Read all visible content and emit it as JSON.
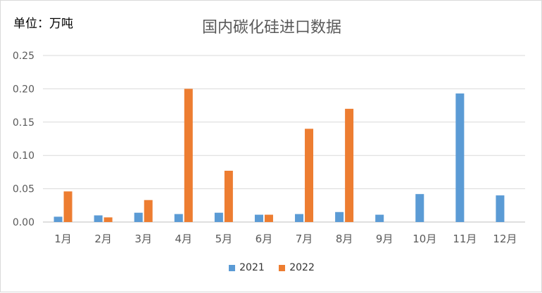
{
  "unit_label": "单位：万吨",
  "colors": {
    "s2021": "#5b9bd5",
    "s2022": "#ed7d31",
    "grid": "#d9d9d9",
    "axis": "#bfbfbf",
    "text": "#595959"
  },
  "chart_data": {
    "type": "bar",
    "title": "国内碳化硅进口数据",
    "categories": [
      "1月",
      "2月",
      "3月",
      "4月",
      "5月",
      "6月",
      "7月",
      "8月",
      "9月",
      "10月",
      "11月",
      "12月"
    ],
    "series": [
      {
        "name": "2021",
        "values": [
          0.008,
          0.01,
          0.014,
          0.012,
          0.014,
          0.011,
          0.012,
          0.015,
          0.011,
          0.042,
          0.193,
          0.04
        ]
      },
      {
        "name": "2022",
        "values": [
          0.046,
          0.007,
          0.033,
          0.2,
          0.077,
          0.011,
          0.14,
          0.17,
          null,
          null,
          null,
          null
        ]
      }
    ],
    "yticks": [
      "0.00",
      "0.05",
      "0.10",
      "0.15",
      "0.20",
      "0.25"
    ],
    "ylim": [
      0,
      0.25
    ],
    "grid": true,
    "legend_position": "bottom"
  }
}
